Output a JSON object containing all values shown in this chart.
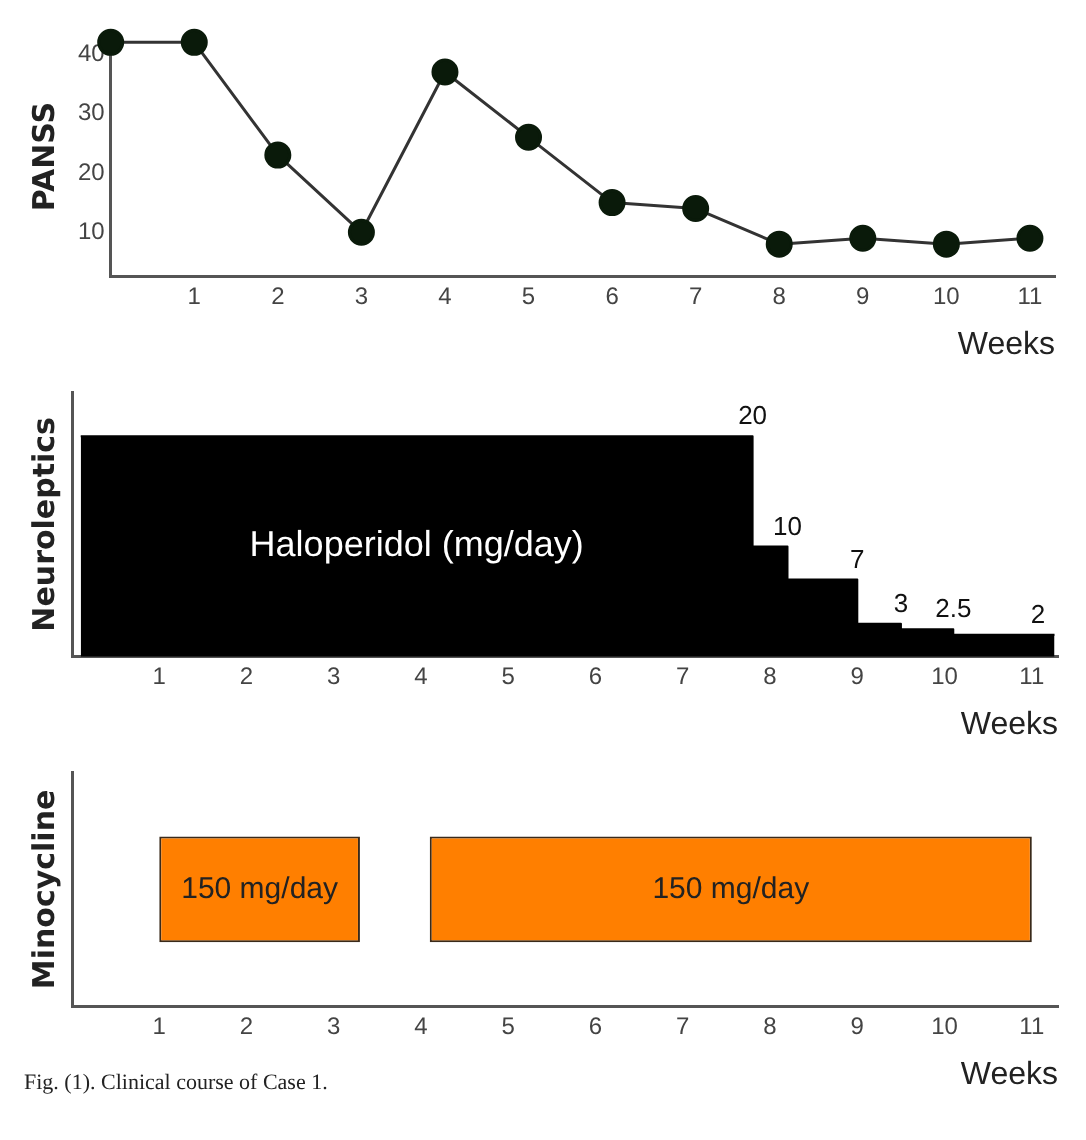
{
  "chart_data": [
    {
      "type": "line",
      "ylabel": "PANSS",
      "xlabel": "Weeks",
      "x": [
        0,
        1,
        2,
        3,
        4,
        5,
        6,
        7,
        8,
        9,
        10,
        11
      ],
      "series": [
        {
          "color": "#0a1a0a",
          "values": [
            42,
            42,
            23,
            10,
            37,
            26,
            15,
            14,
            8,
            9,
            8,
            9
          ]
        }
      ],
      "xlim": [
        0,
        11.3
      ],
      "xticks": [
        1,
        2,
        3,
        4,
        5,
        6,
        7,
        8,
        9,
        10,
        11
      ],
      "ylim": [
        2.5,
        43
      ],
      "yticks": [
        10,
        20,
        30,
        40
      ],
      "grid": false,
      "legend": false,
      "marker": "circle",
      "tick_labels": "xy"
    },
    {
      "type": "area",
      "ylabel": "Neuroleptics",
      "xlabel": "Weeks",
      "x": [
        0.1,
        7.8,
        7.8,
        8.2,
        8.2,
        9.0,
        9.0,
        9.5,
        9.5,
        10.1,
        10.1,
        11.26
      ],
      "series": [
        {
          "color": "#000000",
          "values": [
            20,
            20,
            10,
            10,
            7,
            7,
            3,
            3,
            2.5,
            2.5,
            2,
            2
          ],
          "value_labels": [
            null,
            "20",
            null,
            "10",
            null,
            "7",
            null,
            "3",
            null,
            "2.5",
            null,
            "2"
          ]
        }
      ],
      "annotations": [
        "Haloperidol (mg/day)"
      ],
      "xlim": [
        0,
        11.3
      ],
      "xticks": [
        1,
        2,
        3,
        4,
        5,
        6,
        7,
        8,
        9,
        10,
        11
      ],
      "grid": false,
      "legend": false,
      "tick_labels": "x"
    },
    {
      "type": "bar",
      "orientation": "horizontal",
      "ylabel": "Minocycline",
      "xlabel": "Weeks",
      "categories": [
        null
      ],
      "series": [
        {
          "color": "#ff7f00",
          "values": [
            2.3
          ],
          "base": [
            1.0
          ]
        },
        {
          "color": "#ff7f00",
          "values": [
            6.9
          ],
          "base": [
            4.1
          ]
        }
      ],
      "annotations": [
        "150 mg/day",
        "150 mg/day",
        "Fig. (1). Clinical course of Case 1."
      ],
      "xlim": [
        0,
        11.3
      ],
      "xticks": [
        1,
        2,
        3,
        4,
        5,
        6,
        7,
        8,
        9,
        10,
        11
      ],
      "grid": false,
      "legend": false,
      "tick_labels": "x"
    }
  ]
}
